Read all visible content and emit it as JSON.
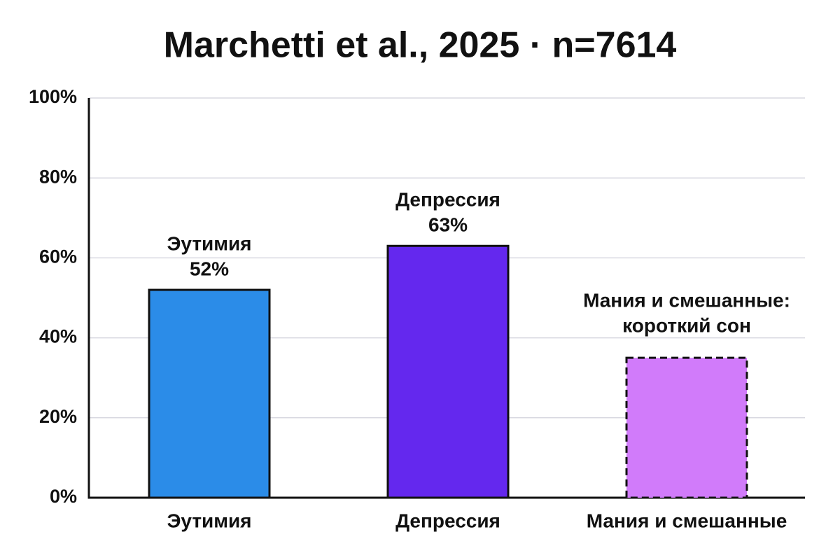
{
  "chart_data": {
    "type": "bar",
    "title": "Marchetti et al., 2025 · n=7614",
    "categories": [
      "Эутимия",
      "Депрессия",
      "Мания и смешанные"
    ],
    "values": [
      52,
      63,
      35
    ],
    "value_labels": [
      "52%",
      "63%",
      null
    ],
    "bar_labels": [
      [
        "Эутимия"
      ],
      [
        "Депрессия"
      ],
      [
        "Мания и смешанные:",
        "короткий сон"
      ]
    ],
    "colors": [
      "#2b8ce8",
      "#6428ee",
      "#d17bfa"
    ],
    "border_styles": [
      "solid",
      "solid",
      "dashed"
    ],
    "ylim": [
      0,
      100
    ],
    "yticks": [
      {
        "value": 0,
        "label": "0%"
      },
      {
        "value": 20,
        "label": "20%"
      },
      {
        "value": 40,
        "label": "40%"
      },
      {
        "value": 60,
        "label": "60%"
      },
      {
        "value": 80,
        "label": "80%"
      },
      {
        "value": 100,
        "label": "100%"
      }
    ],
    "grid": true
  }
}
